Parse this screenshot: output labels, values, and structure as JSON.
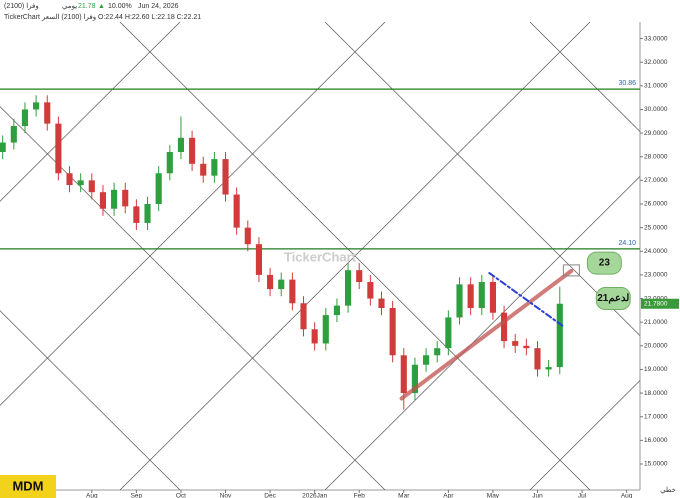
{
  "chart_data": {
    "type": "candlestick",
    "header": {
      "symbol": "وفرا (2100)",
      "period": "يومي",
      "last": "21.78",
      "change": "10.00%",
      "date": "Jun 24, 2026",
      "ohlc_line": "TickerChart وفرا (2100) السعر  O:22.44  H:22.60  L:22.18  C:22.21"
    },
    "watermark": "TickerChart",
    "badge": "MDM",
    "mode_label": "خطي",
    "xlim": [
      -1.06,
      13.3
    ],
    "xticks": [
      {
        "value": 1,
        "label": "Aug"
      },
      {
        "value": 2,
        "label": "Sep"
      },
      {
        "value": 3,
        "label": "Oct"
      },
      {
        "value": 4,
        "label": "Nov"
      },
      {
        "value": 5,
        "label": "Dec"
      },
      {
        "value": 6,
        "label": "2026Jan"
      },
      {
        "value": 7,
        "label": "Feb"
      },
      {
        "value": 8,
        "label": "Mar"
      },
      {
        "value": 9,
        "label": "Apr"
      },
      {
        "value": 10,
        "label": "May"
      },
      {
        "value": 11,
        "label": "Jun"
      },
      {
        "value": 12,
        "label": "Jul"
      },
      {
        "value": 13,
        "label": "Aug"
      }
    ],
    "ylim": [
      13.9,
      33.7
    ],
    "yticks": [
      {
        "value": 15,
        "label": "15.0000"
      },
      {
        "value": 16,
        "label": "16.0000"
      },
      {
        "value": 17,
        "label": "17.0000"
      },
      {
        "value": 18,
        "label": "18.0000"
      },
      {
        "value": 19,
        "label": "19.0000"
      },
      {
        "value": 20,
        "label": "20.0000"
      },
      {
        "value": 21,
        "label": "21.0000"
      },
      {
        "value": 22,
        "label": "22.0000"
      },
      {
        "value": 23,
        "label": "23.0000"
      },
      {
        "value": 24,
        "label": "24.0000"
      },
      {
        "value": 25,
        "label": "25.0000"
      },
      {
        "value": 26,
        "label": "26.0000"
      },
      {
        "value": 27,
        "label": "27.0000"
      },
      {
        "value": 28,
        "label": "28.0000"
      },
      {
        "value": 29,
        "label": "29.0000"
      },
      {
        "value": 30,
        "label": "30.0000"
      },
      {
        "value": 31,
        "label": "31.0000"
      },
      {
        "value": 32,
        "label": "32.0000"
      },
      {
        "value": 33,
        "label": "33.0000"
      }
    ],
    "up_color": "#2e9e3e",
    "down_color": "#d23b3b",
    "candles": {
      "x": [
        -1,
        -0.75,
        -0.5,
        -0.25,
        0,
        0.25,
        0.5,
        0.75,
        1,
        1.25,
        1.5,
        1.75,
        2,
        2.25,
        2.5,
        2.75,
        3,
        3.25,
        3.5,
        3.75,
        4,
        4.25,
        4.5,
        4.75,
        5,
        5.25,
        5.5,
        5.75,
        6,
        6.25,
        6.5,
        6.75,
        7,
        7.25,
        7.5,
        7.75,
        8,
        8.25,
        8.5,
        8.75,
        9,
        9.25,
        9.5,
        9.75,
        10,
        10.25,
        10.5,
        10.75,
        11,
        11.25,
        11.5
      ],
      "open": [
        28.2,
        28.6,
        29.3,
        30.0,
        30.3,
        29.4,
        27.3,
        26.8,
        27.0,
        26.5,
        25.8,
        26.6,
        25.9,
        25.2,
        26.0,
        27.3,
        28.2,
        28.8,
        27.7,
        27.2,
        27.9,
        26.4,
        25.0,
        24.3,
        23.0,
        22.4,
        22.8,
        21.8,
        20.7,
        20.1,
        21.3,
        21.7,
        23.2,
        22.7,
        22.0,
        21.6,
        19.6,
        18.0,
        19.2,
        19.6,
        19.9,
        21.2,
        22.6,
        21.6,
        22.7,
        21.4,
        20.2,
        20.0,
        19.9,
        19.0,
        19.1
      ],
      "high": [
        28.9,
        29.6,
        30.3,
        30.6,
        30.6,
        29.7,
        27.6,
        27.3,
        27.3,
        26.8,
        26.9,
        26.9,
        26.2,
        26.3,
        27.6,
        28.5,
        29.7,
        29.1,
        28.0,
        28.2,
        28.2,
        26.7,
        25.3,
        24.6,
        23.3,
        23.1,
        23.1,
        22.1,
        21.0,
        21.6,
        22.0,
        23.5,
        23.5,
        23.0,
        22.3,
        21.9,
        19.9,
        19.5,
        19.9,
        20.2,
        21.5,
        22.9,
        22.9,
        23.0,
        23.0,
        21.7,
        20.5,
        20.3,
        20.2,
        19.4,
        22.5
      ],
      "low": [
        27.9,
        28.3,
        29.0,
        29.7,
        29.1,
        27.0,
        26.5,
        26.5,
        26.2,
        25.5,
        25.5,
        25.6,
        24.9,
        24.9,
        25.7,
        27.0,
        27.9,
        27.4,
        26.9,
        26.9,
        26.1,
        24.7,
        24.0,
        22.7,
        22.1,
        22.1,
        21.5,
        20.4,
        19.8,
        19.8,
        21.0,
        21.4,
        22.4,
        21.7,
        21.3,
        19.3,
        17.3,
        17.7,
        18.9,
        19.3,
        19.6,
        20.9,
        21.3,
        21.3,
        21.1,
        19.9,
        19.7,
        19.6,
        18.7,
        18.7,
        18.8
      ],
      "close": [
        28.6,
        29.3,
        30.0,
        30.3,
        29.4,
        27.3,
        26.8,
        27.0,
        26.5,
        25.8,
        26.6,
        25.9,
        25.2,
        26.0,
        27.3,
        28.2,
        28.8,
        27.7,
        27.2,
        27.9,
        26.4,
        25.0,
        24.3,
        23.0,
        22.4,
        22.8,
        21.8,
        20.7,
        20.1,
        21.3,
        21.7,
        23.2,
        22.7,
        22.0,
        21.6,
        19.6,
        18.0,
        19.2,
        19.6,
        19.9,
        21.2,
        22.6,
        21.6,
        22.7,
        21.4,
        20.2,
        20.0,
        19.9,
        19.0,
        19.1,
        21.78
      ]
    },
    "levels": [
      {
        "value": 30.86,
        "label": "30.86",
        "color": "#1e7d1e"
      },
      {
        "value": 24.1,
        "label": "24.10",
        "color": "#1e7d1e"
      }
    ],
    "last_price": {
      "value": 21.78,
      "label": "21.7800",
      "color": "#3a9a3a"
    },
    "trend_lines": [
      {
        "from": [
          7.95,
          17.77
        ],
        "to": [
          11.76,
          23.17
        ],
        "color": "#c0504d",
        "dashed": false
      },
      {
        "from": [
          9.92,
          23.08
        ],
        "to": [
          11.56,
          20.85
        ],
        "color": "#2a3fd1",
        "dashed": true
      }
    ],
    "annotations": [
      {
        "text": "23",
        "x": 12.5,
        "y": 23.5
      },
      {
        "text": "لدعم21",
        "x": 12.7,
        "y": 22.0
      }
    ]
  }
}
